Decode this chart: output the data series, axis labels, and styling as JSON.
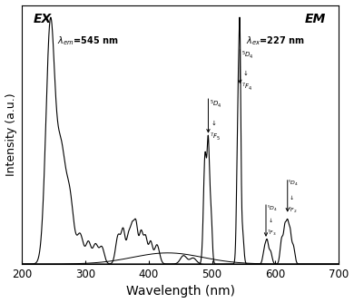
{
  "title": "",
  "xlabel": "Wavelength (nm)",
  "ylabel": "Intensity (a.u.)",
  "xlim": [
    200,
    700
  ],
  "ylim": [
    0,
    1.05
  ],
  "background_color": "#ffffff",
  "line_color": "#000000",
  "ex_label": "EX",
  "em_label": "EM",
  "xticks": [
    200,
    300,
    400,
    500,
    600,
    700
  ]
}
